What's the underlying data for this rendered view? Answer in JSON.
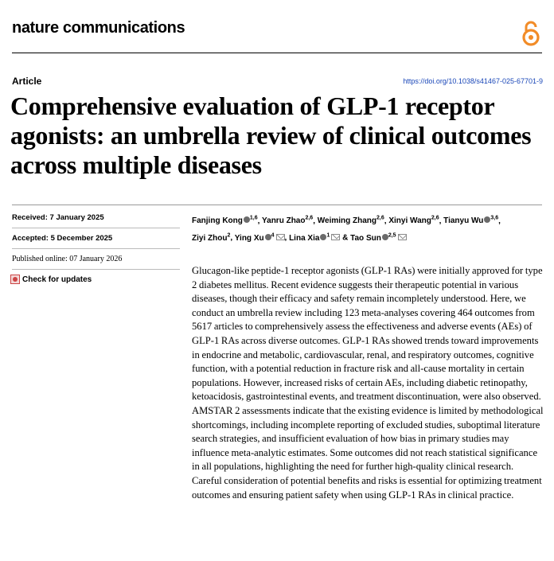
{
  "journal": "nature communications",
  "article_type": "Article",
  "doi": "https://doi.org/10.1038/s41467-025-67701-9",
  "title": "Comprehensive evaluation of GLP-1 receptor agonists: an umbrella review of clinical outcomes across multiple diseases",
  "dates": {
    "received": "Received: 7 January 2025",
    "accepted": "Accepted: 5 December 2025",
    "published": "Published online: 07 January 2026"
  },
  "check_updates": "Check for updates",
  "authors": [
    {
      "name": "Fanjing Kong",
      "affil": "1,6",
      "orcid": true,
      "email": false,
      "sep": ", "
    },
    {
      "name": "Yanru Zhao",
      "affil": "2,6",
      "orcid": false,
      "email": false,
      "sep": ", "
    },
    {
      "name": "Weiming Zhang",
      "affil": "2,6",
      "orcid": false,
      "email": false,
      "sep": ", "
    },
    {
      "name": "Xinyi Wang",
      "affil": "2,6",
      "orcid": false,
      "email": false,
      "sep": ", "
    },
    {
      "name": "Tianyu Wu",
      "affil": "3,6",
      "orcid": true,
      "email": false,
      "sep": ", "
    },
    {
      "name": "Ziyi Zhou",
      "affil": "2",
      "orcid": false,
      "email": false,
      "sep": ", "
    },
    {
      "name": "Ying Xu",
      "affil": "4",
      "orcid": true,
      "email": true,
      "sep": ", "
    },
    {
      "name": "Lina Xia",
      "affil": "1",
      "orcid": true,
      "email": true,
      "sep": " & "
    },
    {
      "name": "Tao Sun",
      "affil": "2,5",
      "orcid": true,
      "email": true,
      "sep": ""
    }
  ],
  "abstract": "Glucagon-like peptide-1 receptor agonists (GLP-1 RAs) were initially approved for type 2 diabetes mellitus. Recent evidence suggests their therapeutic potential in various diseases, though their efficacy and safety remain incompletely understood. Here, we conduct an umbrella review including 123 meta-analyses covering 464 outcomes from 5617 articles to comprehensively assess the effectiveness and adverse events (AEs) of GLP-1 RAs across diverse outcomes. GLP-1 RAs showed trends toward improvements in endocrine and metabolic, cardiovascular, renal, and respiratory outcomes, cognitive function, with a potential reduction in fracture risk and all-cause mortality in certain populations. However, increased risks of certain AEs, including diabetic retinopathy, ketoacidosis, gastrointestinal events, and treatment discontinuation, were also observed. AMSTAR 2 assessments indicate that the existing evidence is limited by methodological shortcomings, including incomplete reporting of excluded studies, suboptimal literature search strategies, and insufficient evaluation of how bias in primary studies may influence meta-analytic estimates. Some outcomes did not reach statistical significance in all populations, highlighting the need for further high-quality clinical research. Careful consideration of potential benefits and risks is essential for optimizing treatment outcomes and ensuring patient safety when using GLP-1 RAs in clinical practice.",
  "colors": {
    "doi_link": "#1a47b8",
    "oa_icon": "#f28c28"
  },
  "icons": {
    "open_access": "open-access-lock-icon",
    "check_updates": "check-for-updates-icon",
    "orcid": "orcid-icon",
    "email": "email-icon"
  }
}
